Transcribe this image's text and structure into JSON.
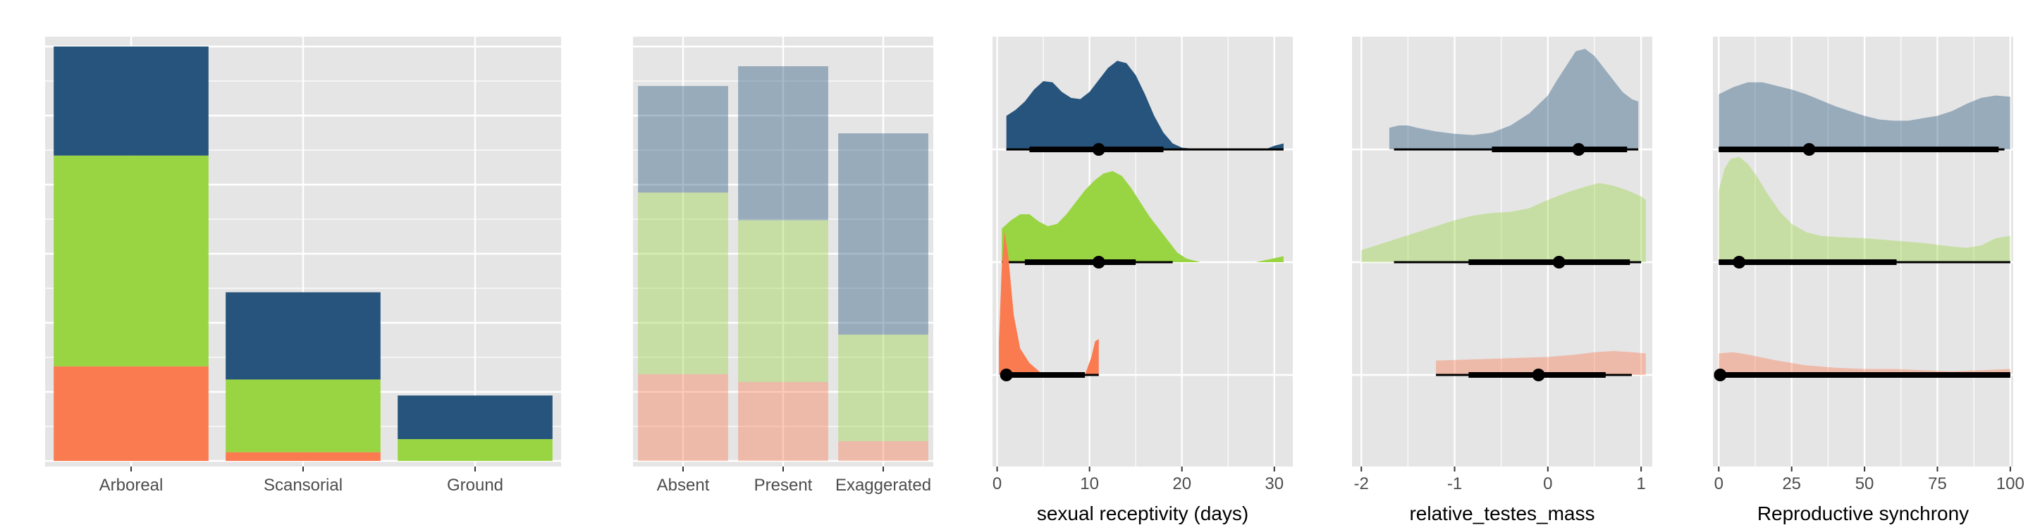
{
  "colors": {
    "panel_bg": "#e5e5e5",
    "grid": "#ffffff",
    "series_dark_blue": "#26547c",
    "series_green": "#99d542",
    "series_orange": "#fb7b51"
  },
  "chart_data": [
    {
      "type": "bar",
      "stacked": true,
      "categories": [
        "Arboreal",
        "Scansorial",
        "Ground"
      ],
      "series": [
        {
          "color_key": "series_orange",
          "values": [
            13,
            1.2,
            0
          ]
        },
        {
          "color_key": "series_green",
          "values": [
            29,
            10,
            3
          ]
        },
        {
          "color_key": "series_dark_blue",
          "values": [
            15,
            12,
            6
          ]
        }
      ],
      "ylim": [
        0,
        57
      ],
      "xlabel": "",
      "ylabel": "",
      "grid": true
    },
    {
      "type": "bar",
      "stacked": true,
      "proportional": true,
      "categories": [
        "Absent",
        "Present",
        "Exaggerated"
      ],
      "series": [
        {
          "color_key": "series_orange",
          "values": [
            0.22,
            0.2,
            0.05
          ],
          "alpha": 0.4
        },
        {
          "color_key": "series_green",
          "values": [
            0.46,
            0.41,
            0.27
          ],
          "alpha": 0.4
        },
        {
          "color_key": "series_dark_blue",
          "values": [
            0.27,
            0.39,
            0.51
          ],
          "alpha": 0.4
        }
      ],
      "ylim": [
        0,
        1.05
      ],
      "xlabel": "",
      "ylabel": "",
      "grid": true
    },
    {
      "type": "density",
      "xlabel": "sexual receptivity (days)",
      "xlim": [
        -0.5,
        32
      ],
      "xticks": [
        0,
        10,
        20,
        30
      ],
      "rows": [
        {
          "color_key": "series_dark_blue",
          "alpha": 1.0,
          "range": [
            1,
            31
          ],
          "density": [
            [
              1,
              0.28
            ],
            [
              2,
              0.33
            ],
            [
              3,
              0.4
            ],
            [
              4,
              0.5
            ],
            [
              5,
              0.57
            ],
            [
              6,
              0.56
            ],
            [
              7,
              0.48
            ],
            [
              8,
              0.43
            ],
            [
              9,
              0.42
            ],
            [
              10,
              0.48
            ],
            [
              11,
              0.58
            ],
            [
              12,
              0.68
            ],
            [
              13,
              0.74
            ],
            [
              14,
              0.72
            ],
            [
              15,
              0.62
            ],
            [
              16,
              0.46
            ],
            [
              17,
              0.28
            ],
            [
              18,
              0.14
            ],
            [
              19,
              0.05
            ],
            [
              20,
              0.015
            ],
            [
              22,
              0.0
            ],
            [
              29,
              0.0
            ],
            [
              30,
              0.03
            ],
            [
              31,
              0.05
            ]
          ],
          "median": 11,
          "interval_thick": [
            3.5,
            18
          ],
          "interval_thin": [
            1,
            31
          ]
        },
        {
          "color_key": "series_green",
          "alpha": 1.0,
          "range": [
            0.5,
            31
          ],
          "density": [
            [
              0.5,
              0.28
            ],
            [
              1.5,
              0.35
            ],
            [
              2.5,
              0.4
            ],
            [
              3.5,
              0.4
            ],
            [
              4.5,
              0.34
            ],
            [
              5.5,
              0.3
            ],
            [
              6.5,
              0.32
            ],
            [
              7.5,
              0.4
            ],
            [
              8.5,
              0.5
            ],
            [
              9.5,
              0.6
            ],
            [
              10.5,
              0.68
            ],
            [
              11.5,
              0.74
            ],
            [
              12.5,
              0.76
            ],
            [
              13.5,
              0.72
            ],
            [
              14.5,
              0.62
            ],
            [
              15.5,
              0.5
            ],
            [
              16.5,
              0.38
            ],
            [
              17.5,
              0.28
            ],
            [
              18.5,
              0.18
            ],
            [
              19.5,
              0.08
            ],
            [
              20.5,
              0.03
            ],
            [
              22,
              0.0
            ],
            [
              28,
              0.0
            ],
            [
              31,
              0.05
            ]
          ],
          "median": 11,
          "interval_thick": [
            3,
            15
          ],
          "interval_thin": [
            0.5,
            19
          ]
        },
        {
          "color_key": "series_orange",
          "alpha": 1.0,
          "range": [
            0.2,
            11
          ],
          "density": [
            [
              0.2,
              0.28
            ],
            [
              0.5,
              0.9
            ],
            [
              0.8,
              1.2
            ],
            [
              1.2,
              1.0
            ],
            [
              1.8,
              0.5
            ],
            [
              2.5,
              0.22
            ],
            [
              3.5,
              0.1
            ],
            [
              5,
              0.0
            ],
            [
              9.5,
              0.0
            ],
            [
              10.2,
              0.15
            ],
            [
              10.6,
              0.28
            ],
            [
              11,
              0.3
            ]
          ],
          "median": 1,
          "interval_thick": [
            1,
            9.5
          ],
          "interval_thin": [
            0.5,
            11
          ]
        }
      ]
    },
    {
      "type": "density",
      "xlabel": "relative_testes_mass",
      "xlim": [
        -2.1,
        1.12
      ],
      "xticks": [
        -2,
        -1,
        0,
        1
      ],
      "rows": [
        {
          "color_key": "series_dark_blue",
          "alpha": 0.4,
          "range": [
            -1.7,
            0.97
          ],
          "density": [
            [
              -1.7,
              0.18
            ],
            [
              -1.6,
              0.2
            ],
            [
              -1.5,
              0.2
            ],
            [
              -1.4,
              0.18
            ],
            [
              -1.2,
              0.15
            ],
            [
              -1.0,
              0.13
            ],
            [
              -0.8,
              0.12
            ],
            [
              -0.6,
              0.14
            ],
            [
              -0.4,
              0.2
            ],
            [
              -0.2,
              0.3
            ],
            [
              0.0,
              0.45
            ],
            [
              0.1,
              0.58
            ],
            [
              0.2,
              0.7
            ],
            [
              0.3,
              0.82
            ],
            [
              0.4,
              0.84
            ],
            [
              0.5,
              0.78
            ],
            [
              0.6,
              0.68
            ],
            [
              0.7,
              0.58
            ],
            [
              0.8,
              0.48
            ],
            [
              0.9,
              0.42
            ],
            [
              0.97,
              0.4
            ]
          ],
          "median": 0.33,
          "interval_thick": [
            -0.6,
            0.85
          ],
          "interval_thin": [
            -1.65,
            0.97
          ]
        },
        {
          "color_key": "series_green",
          "alpha": 0.4,
          "range": [
            -2.0,
            1.05
          ],
          "density": [
            [
              -2.0,
              0.1
            ],
            [
              -1.8,
              0.15
            ],
            [
              -1.6,
              0.2
            ],
            [
              -1.4,
              0.25
            ],
            [
              -1.2,
              0.3
            ],
            [
              -1.0,
              0.35
            ],
            [
              -0.8,
              0.39
            ],
            [
              -0.6,
              0.41
            ],
            [
              -0.4,
              0.42
            ],
            [
              -0.2,
              0.45
            ],
            [
              0.0,
              0.52
            ],
            [
              0.2,
              0.58
            ],
            [
              0.4,
              0.63
            ],
            [
              0.55,
              0.66
            ],
            [
              0.7,
              0.64
            ],
            [
              0.85,
              0.6
            ],
            [
              1.0,
              0.55
            ],
            [
              1.05,
              0.52
            ]
          ],
          "median": 0.12,
          "interval_thick": [
            -0.85,
            0.88
          ],
          "interval_thin": [
            -1.65,
            1.0
          ]
        },
        {
          "color_key": "series_orange",
          "alpha": 0.4,
          "range": [
            -1.2,
            1.05
          ],
          "density": [
            [
              -1.2,
              0.12
            ],
            [
              -0.8,
              0.13
            ],
            [
              -0.4,
              0.14
            ],
            [
              0.0,
              0.15
            ],
            [
              0.3,
              0.17
            ],
            [
              0.5,
              0.19
            ],
            [
              0.7,
              0.2
            ],
            [
              0.9,
              0.19
            ],
            [
              1.05,
              0.18
            ]
          ],
          "median": -0.1,
          "interval_thick": [
            -0.85,
            0.62
          ],
          "interval_thin": [
            -1.2,
            0.9
          ]
        }
      ]
    },
    {
      "type": "density",
      "xlabel": "Reproductive synchrony",
      "xlim": [
        -2,
        101
      ],
      "xticks": [
        0,
        25,
        50,
        75,
        100
      ],
      "rows": [
        {
          "color_key": "series_dark_blue",
          "alpha": 0.4,
          "range": [
            0,
            100
          ],
          "density": [
            [
              0,
              0.46
            ],
            [
              5,
              0.52
            ],
            [
              10,
              0.56
            ],
            [
              15,
              0.56
            ],
            [
              20,
              0.53
            ],
            [
              25,
              0.5
            ],
            [
              30,
              0.46
            ],
            [
              35,
              0.41
            ],
            [
              40,
              0.36
            ],
            [
              45,
              0.32
            ],
            [
              50,
              0.28
            ],
            [
              55,
              0.25
            ],
            [
              60,
              0.24
            ],
            [
              65,
              0.24
            ],
            [
              70,
              0.26
            ],
            [
              75,
              0.28
            ],
            [
              80,
              0.32
            ],
            [
              85,
              0.38
            ],
            [
              90,
              0.43
            ],
            [
              95,
              0.45
            ],
            [
              100,
              0.44
            ]
          ],
          "median": 31,
          "interval_thick": [
            0,
            96
          ],
          "interval_thin": [
            0,
            98
          ]
        },
        {
          "color_key": "series_green",
          "alpha": 0.4,
          "range": [
            0,
            100
          ],
          "density": [
            [
              0,
              0.6
            ],
            [
              2,
              0.78
            ],
            [
              4,
              0.86
            ],
            [
              7,
              0.88
            ],
            [
              10,
              0.82
            ],
            [
              13,
              0.72
            ],
            [
              17,
              0.56
            ],
            [
              21,
              0.42
            ],
            [
              25,
              0.32
            ],
            [
              30,
              0.25
            ],
            [
              35,
              0.22
            ],
            [
              40,
              0.21
            ],
            [
              50,
              0.2
            ],
            [
              60,
              0.18
            ],
            [
              70,
              0.16
            ],
            [
              80,
              0.13
            ],
            [
              85,
              0.12
            ],
            [
              90,
              0.14
            ],
            [
              95,
              0.2
            ],
            [
              100,
              0.22
            ]
          ],
          "median": 7,
          "interval_thick": [
            0,
            61
          ],
          "interval_thin": [
            0,
            100
          ]
        },
        {
          "color_key": "series_orange",
          "alpha": 0.4,
          "range": [
            0,
            100
          ],
          "density": [
            [
              0,
              0.18
            ],
            [
              5,
              0.19
            ],
            [
              10,
              0.17
            ],
            [
              20,
              0.12
            ],
            [
              30,
              0.08
            ],
            [
              40,
              0.06
            ],
            [
              50,
              0.05
            ],
            [
              60,
              0.05
            ],
            [
              70,
              0.04
            ],
            [
              80,
              0.03
            ],
            [
              90,
              0.04
            ],
            [
              100,
              0.05
            ]
          ],
          "median": 0.5,
          "interval_thick": [
            0,
            100
          ],
          "interval_thin": [
            0,
            100
          ]
        }
      ]
    }
  ]
}
